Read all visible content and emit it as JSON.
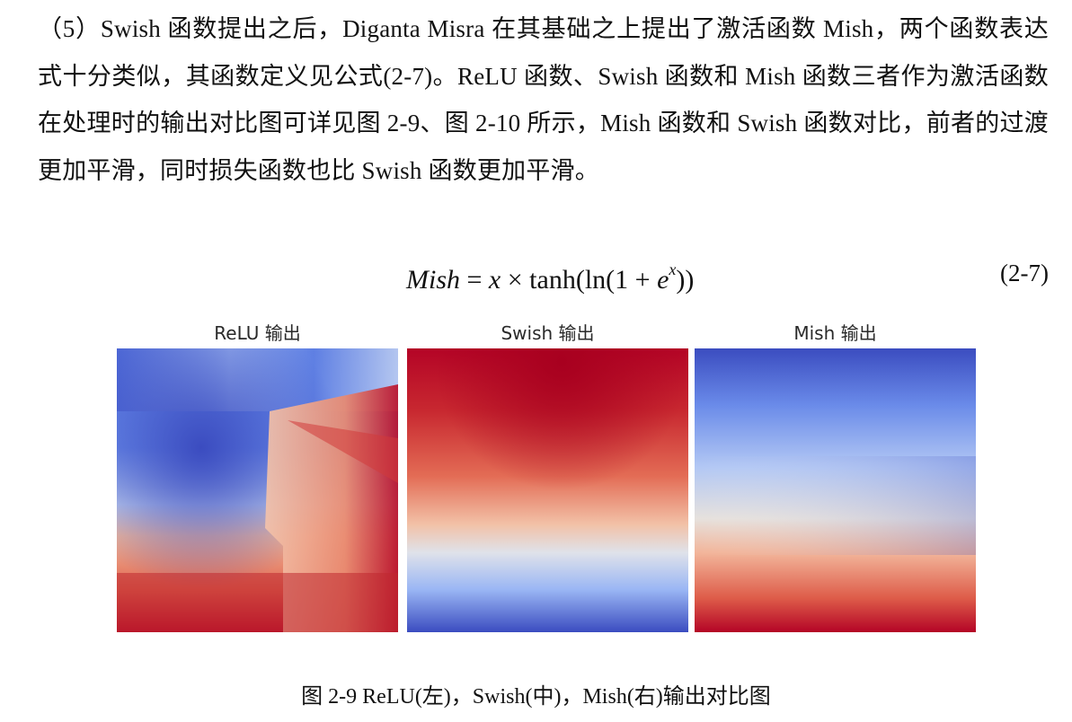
{
  "paragraph": "（5）Swish 函数提出之后，Diganta Misra 在其基础之上提出了激活函数 Mish，两个函数表达式十分类似，其函数定义见公式(2-7)。ReLU 函数、Swish 函数和 Mish 函数三者作为激活函数在处理时的输出对比图可详见图 2-9、图 2-10 所示，Mish 函数和 Swish 函数对比，前者的过渡更加平滑，同时损失函数也比 Swish 函数更加平滑。",
  "formula": {
    "lhs": "Mish",
    "equals": " = ",
    "x": "x",
    "times": " × ",
    "body": "tanh(ln(1 + ",
    "e": "e",
    "exp": "x",
    "close": "))",
    "number": "(2-7)"
  },
  "figure": {
    "panels": [
      {
        "title": "ReLU 输出"
      },
      {
        "title": "Swish 输出"
      },
      {
        "title": "Mish 输出"
      }
    ],
    "colormap": {
      "low": "#3b4cc0",
      "mid": "#dddddd",
      "high": "#b40426"
    },
    "caption": "图 2-9 ReLU(左)，Swish(中)，Mish(右)输出对比图"
  }
}
